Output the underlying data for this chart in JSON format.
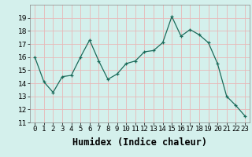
{
  "x": [
    0,
    1,
    2,
    3,
    4,
    5,
    6,
    7,
    8,
    9,
    10,
    11,
    12,
    13,
    14,
    15,
    16,
    17,
    18,
    19,
    20,
    21,
    22,
    23
  ],
  "y": [
    16.0,
    14.1,
    13.3,
    14.5,
    14.6,
    16.0,
    17.3,
    15.7,
    14.3,
    14.7,
    15.5,
    15.7,
    16.4,
    16.5,
    17.1,
    19.1,
    17.6,
    18.1,
    17.7,
    17.1,
    15.5,
    13.0,
    12.3,
    11.5
  ],
  "xlabel": "Humidex (Indice chaleur)",
  "ylim": [
    11,
    20
  ],
  "xlim": [
    -0.5,
    23.5
  ],
  "yticks": [
    11,
    12,
    13,
    14,
    15,
    16,
    17,
    18,
    19
  ],
  "xtick_labels": [
    "0",
    "1",
    "2",
    "3",
    "4",
    "5",
    "6",
    "7",
    "8",
    "9",
    "10",
    "11",
    "12",
    "13",
    "14",
    "15",
    "16",
    "17",
    "18",
    "19",
    "20",
    "21",
    "22",
    "23"
  ],
  "line_color": "#1a6b5a",
  "marker": "+",
  "bg_color": "#d4f0ec",
  "grid_color": "#e8b8b8",
  "tick_fontsize": 6.5,
  "xlabel_fontsize": 8.5
}
